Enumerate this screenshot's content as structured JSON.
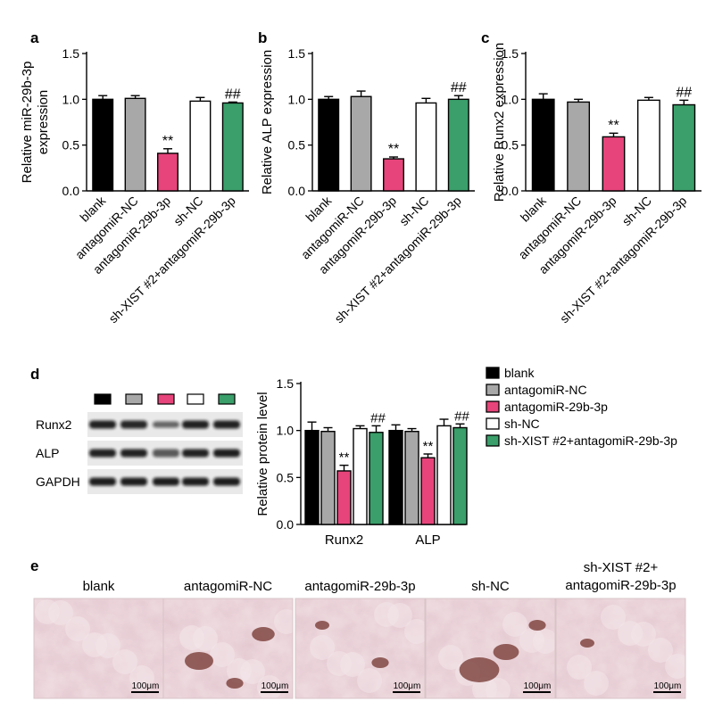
{
  "colors": {
    "blank": "#000000",
    "antagomiR-NC": "#a8a8a8",
    "antagomiR-29b-3p": "#e6447a",
    "sh-NC": "#ffffff",
    "sh-XIST #2+antagomiR-29b-3p": "#3a9f6a"
  },
  "groups": [
    "blank",
    "antagomiR-NC",
    "antagomiR-29b-3p",
    "sh-NC",
    "sh-XIST #2+antagomiR-29b-3p"
  ],
  "chart_data": [
    {
      "panel": "a",
      "type": "bar",
      "ylabel": [
        "Relative miR-29b-3p",
        "expression"
      ],
      "ylim": [
        0,
        1.5
      ],
      "yticks": [
        "0.0",
        "0.5",
        "1.0",
        "1.5"
      ],
      "categories": [
        "blank",
        "antagomiR-NC",
        "antagomiR-29b-3p",
        "sh-NC",
        "sh-XIST #2+antagomiR-29b-3p"
      ],
      "values": [
        1.0,
        1.01,
        0.41,
        0.98,
        0.96
      ],
      "errors": [
        0.04,
        0.03,
        0.05,
        0.04,
        0.01
      ],
      "annotations": [
        "",
        "",
        "**",
        "",
        "##"
      ]
    },
    {
      "panel": "b",
      "type": "bar",
      "ylabel": [
        "Relative ALP expression"
      ],
      "ylim": [
        0,
        1.5
      ],
      "yticks": [
        "0.0",
        "0.5",
        "1.0",
        "1.5"
      ],
      "categories": [
        "blank",
        "antagomiR-NC",
        "antagomiR-29b-3p",
        "sh-NC",
        "sh-XIST #2+antagomiR-29b-3p"
      ],
      "values": [
        1.0,
        1.03,
        0.35,
        0.96,
        1.0
      ],
      "errors": [
        0.03,
        0.06,
        0.02,
        0.05,
        0.04
      ],
      "annotations": [
        "",
        "",
        "**",
        "",
        "##"
      ]
    },
    {
      "panel": "c",
      "type": "bar",
      "ylabel": [
        "Relative Runx2 expression"
      ],
      "ylim": [
        0,
        1.5
      ],
      "yticks": [
        "0.0",
        "0.5",
        "1.0",
        "1.5"
      ],
      "categories": [
        "blank",
        "antagomiR-NC",
        "antagomiR-29b-3p",
        "sh-NC",
        "sh-XIST #2+antagomiR-29b-3p"
      ],
      "values": [
        1.0,
        0.97,
        0.59,
        0.99,
        0.94
      ],
      "errors": [
        0.06,
        0.03,
        0.04,
        0.03,
        0.05
      ],
      "annotations": [
        "",
        "",
        "**",
        "",
        "##"
      ]
    },
    {
      "panel": "d",
      "type": "bar",
      "ylabel": [
        "Relative protein level"
      ],
      "ylim": [
        0,
        1.5
      ],
      "yticks": [
        "0.0",
        "0.5",
        "1.0",
        "1.5"
      ],
      "categories": [
        "Runx2",
        "ALP"
      ],
      "series": [
        {
          "name": "blank",
          "values": [
            1.0,
            1.0
          ],
          "errors": [
            0.09,
            0.06
          ]
        },
        {
          "name": "antagomiR-NC",
          "values": [
            0.99,
            0.99
          ],
          "errors": [
            0.04,
            0.03
          ]
        },
        {
          "name": "antagomiR-29b-3p",
          "values": [
            0.57,
            0.71
          ],
          "errors": [
            0.06,
            0.04
          ]
        },
        {
          "name": "sh-NC",
          "values": [
            1.02,
            1.05
          ],
          "errors": [
            0.03,
            0.07
          ]
        },
        {
          "name": "sh-XIST #2+antagomiR-29b-3p",
          "values": [
            0.98,
            1.03
          ],
          "errors": [
            0.07,
            0.04
          ]
        }
      ],
      "annotations": {
        "antagomiR-29b-3p": "**",
        "sh-XIST #2+antagomiR-29b-3p": "##"
      },
      "legend": "right"
    }
  ],
  "blot": {
    "rows": [
      "Runx2",
      "ALP",
      "GAPDH"
    ]
  },
  "micrographs": {
    "labels": [
      [
        "blank"
      ],
      [
        "antagomiR-NC"
      ],
      [
        "antagomiR-29b-3p"
      ],
      [
        "sh-NC"
      ],
      [
        "sh-XIST #2+",
        "antagomiR-29b-3p"
      ]
    ],
    "scale_bar": "100μm"
  },
  "panel_letters": [
    "a",
    "b",
    "c",
    "d",
    "e"
  ]
}
